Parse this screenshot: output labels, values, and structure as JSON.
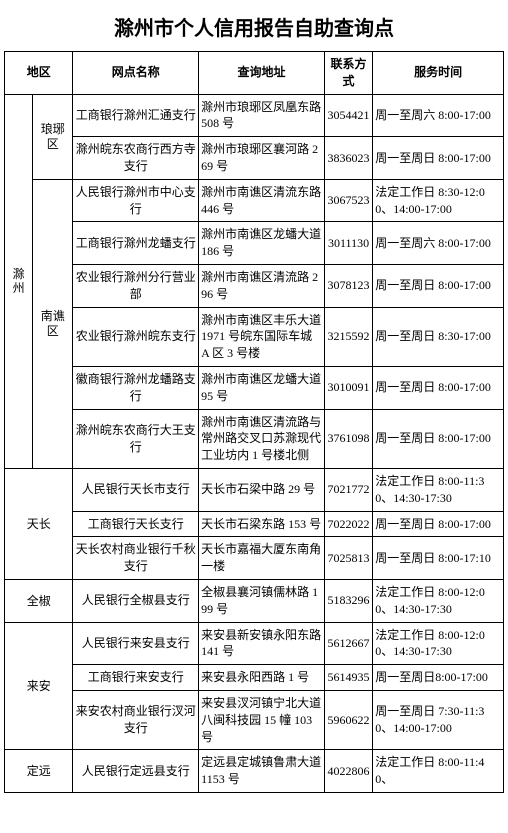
{
  "title": "滁州市个人信用报告自助查询点",
  "headers": {
    "region": "地区",
    "branch": "网点名称",
    "address": "查询地址",
    "phone": "联系方式",
    "hours": "服务时间"
  },
  "region1": {
    "name": "滁州"
  },
  "district_langya": "琅琊区",
  "district_nanqiao": "南谯区",
  "district_tianchang": "天长",
  "district_quanjiao": "全椒",
  "district_laian": "来安",
  "district_dingyuan": "定远",
  "rows": {
    "r1": {
      "branch": "工商银行滁州汇通支行",
      "addr": "滁州市琅琊区凤凰东路 508 号",
      "phone": "3054421",
      "hours": "周一至周六 8:00-17:00"
    },
    "r2": {
      "branch": "滁州皖东农商行西方寺支行",
      "addr": "滁州市琅琊区襄河路 269 号",
      "phone": "3836023",
      "hours": "周一至周日 8:00-17:00"
    },
    "r3": {
      "branch": "人民银行滁州市中心支行",
      "addr": "滁州市南谯区清流东路 446 号",
      "phone": "3067523",
      "hours": "法定工作日 8:30-12:00、14:00-17:00"
    },
    "r4": {
      "branch": "工商银行滁州龙蟠支行",
      "addr": "滁州市南谯区龙蟠大道 186 号",
      "phone": "3011130",
      "hours": "周一至周六 8:00-17:00"
    },
    "r5": {
      "branch": "农业银行滁州分行营业部",
      "addr": "滁州市南谯区清流路 296 号",
      "phone": "3078123",
      "hours": "周一至周日 8:00-17:00"
    },
    "r6": {
      "branch": "农业银行滁州皖东支行",
      "addr": "滁州市南谯区丰乐大道 1971 号皖东国际车城 A 区 3 号楼",
      "phone": "3215592",
      "hours": "周一至周日 8:30-17:00"
    },
    "r7": {
      "branch": "徽商银行滁州龙蟠路支行",
      "addr": "滁州市南谯区龙蟠大道 95 号",
      "phone": "3010091",
      "hours": "周一至周日 8:00-17:00"
    },
    "r8": {
      "branch": "滁州皖东农商行大王支行",
      "addr": "滁州市南谯区清流路与常州路交叉口苏滁现代工业坊内 1 号楼北侧",
      "phone": "3761098",
      "hours": "周一至周日 8:00-17:00"
    },
    "r9": {
      "branch": "人民银行天长市支行",
      "addr": "天长市石梁中路 29 号",
      "phone": "7021772",
      "hours": "法定工作日 8:00-11:30、14:30-17:30"
    },
    "r10": {
      "branch": "工商银行天长支行",
      "addr": "天长市石梁东路 153 号",
      "phone": "7022022",
      "hours": "周一至周日 8:00-17:00"
    },
    "r11": {
      "branch": "天长农村商业银行千秋支行",
      "addr": "天长市嘉福大厦东南角一楼",
      "phone": "7025813",
      "hours": "周一至周日 8:00-17:10"
    },
    "r12": {
      "branch": "人民银行全椒县支行",
      "addr": "全椒县襄河镇儒林路 199 号",
      "phone": "5183296",
      "hours": "法定工作日 8:00-12:00、14:30-17:30"
    },
    "r13": {
      "branch": "人民银行来安县支行",
      "addr": "来安县新安镇永阳东路 141 号",
      "phone": "5612667",
      "hours": "法定工作日 8:00-12:00、14:30-17:30"
    },
    "r14": {
      "branch": "工商银行来安支行",
      "addr": "来安县永阳西路 1 号",
      "phone": "5614935",
      "hours": "周一至周日8:00-17:00"
    },
    "r15": {
      "branch": "来安农村商业银行汊河支行",
      "addr": "来安县汊河镇宁北大道八闽科技园 15 幢 103 号",
      "phone": "5960622",
      "hours": "周一至周日 7:30-11:30、14:00-17:00"
    },
    "r16": {
      "branch": "人民银行定远县支行",
      "addr": "定远县定城镇鲁肃大道 1153 号",
      "phone": "4022806",
      "hours": "法定工作日 8:00-11:40、"
    }
  }
}
